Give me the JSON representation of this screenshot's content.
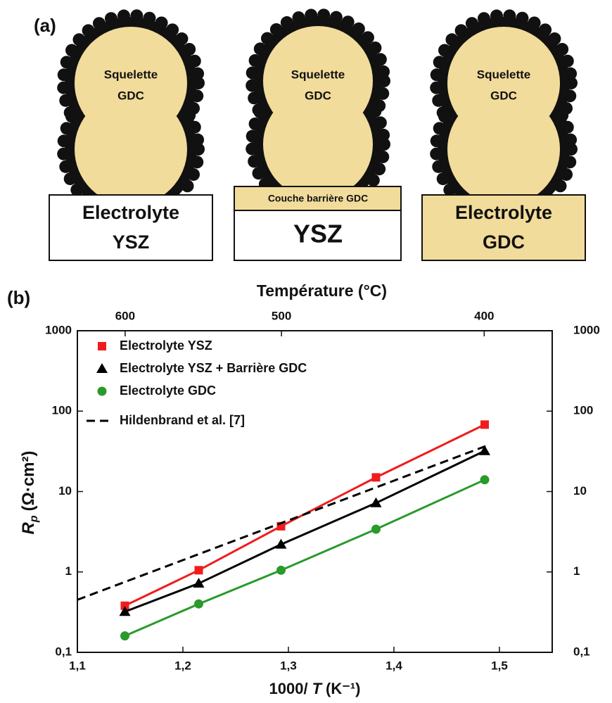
{
  "panel_a": {
    "label": "(a)",
    "columns": [
      {
        "particle": [
          "Squelette",
          "GDC"
        ],
        "base": [
          "Electrolyte",
          "YSZ"
        ]
      },
      {
        "particle": [
          "Squelette",
          "GDC"
        ],
        "barrier": "Couche barrière  GDC",
        "base": [
          "YSZ"
        ]
      },
      {
        "particle": [
          "Squelette",
          "GDC"
        ],
        "base": [
          "Electrolyte",
          "GDC"
        ]
      }
    ]
  },
  "chart_data": {
    "type": "line",
    "panel_label": "(b)",
    "x2label": "Température (°C)",
    "x2ticks": [
      600,
      500,
      400
    ],
    "xlabel": [
      "1000/",
      "T",
      "(K⁻¹)"
    ],
    "ylabel": [
      "R",
      "p",
      "(Ω·cm²)"
    ],
    "xlim": [
      1.1,
      1.55
    ],
    "xticks": [
      {
        "value": 1.1,
        "label": "1,1"
      },
      {
        "value": 1.2,
        "label": "1,2"
      },
      {
        "value": 1.3,
        "label": "1,3"
      },
      {
        "value": 1.4,
        "label": "1,4"
      },
      {
        "value": 1.5,
        "label": "1,5"
      }
    ],
    "ylim": [
      0.1,
      1000
    ],
    "log_y": true,
    "yticks": [
      {
        "value": 0.1,
        "label": "0,1"
      },
      1,
      10,
      100,
      1000
    ],
    "legend": "upper left",
    "x": [
      1.145,
      1.215,
      1.293,
      1.383,
      1.486
    ],
    "series": [
      {
        "name": "Electrolyte YSZ",
        "color": "#f01c1c",
        "marker": "square",
        "style": "solid",
        "values": [
          0.38,
          1.05,
          3.7,
          15,
          68
        ]
      },
      {
        "name": "Electrolyte YSZ + Barrière GDC",
        "color": "#000000",
        "marker": "triangle",
        "style": "solid",
        "values": [
          0.32,
          0.72,
          2.2,
          7.2,
          32
        ]
      },
      {
        "name": "Electrolyte GDC",
        "color": "#2a9a2a",
        "marker": "circle",
        "style": "solid",
        "values": [
          0.16,
          0.4,
          1.05,
          3.4,
          14
        ]
      },
      {
        "name": "Hildenbrand et al. [7]",
        "color": "#000000",
        "marker": "none",
        "style": "dashed",
        "x": [
          1.1,
          1.49
        ],
        "values": [
          0.45,
          38
        ]
      }
    ]
  }
}
